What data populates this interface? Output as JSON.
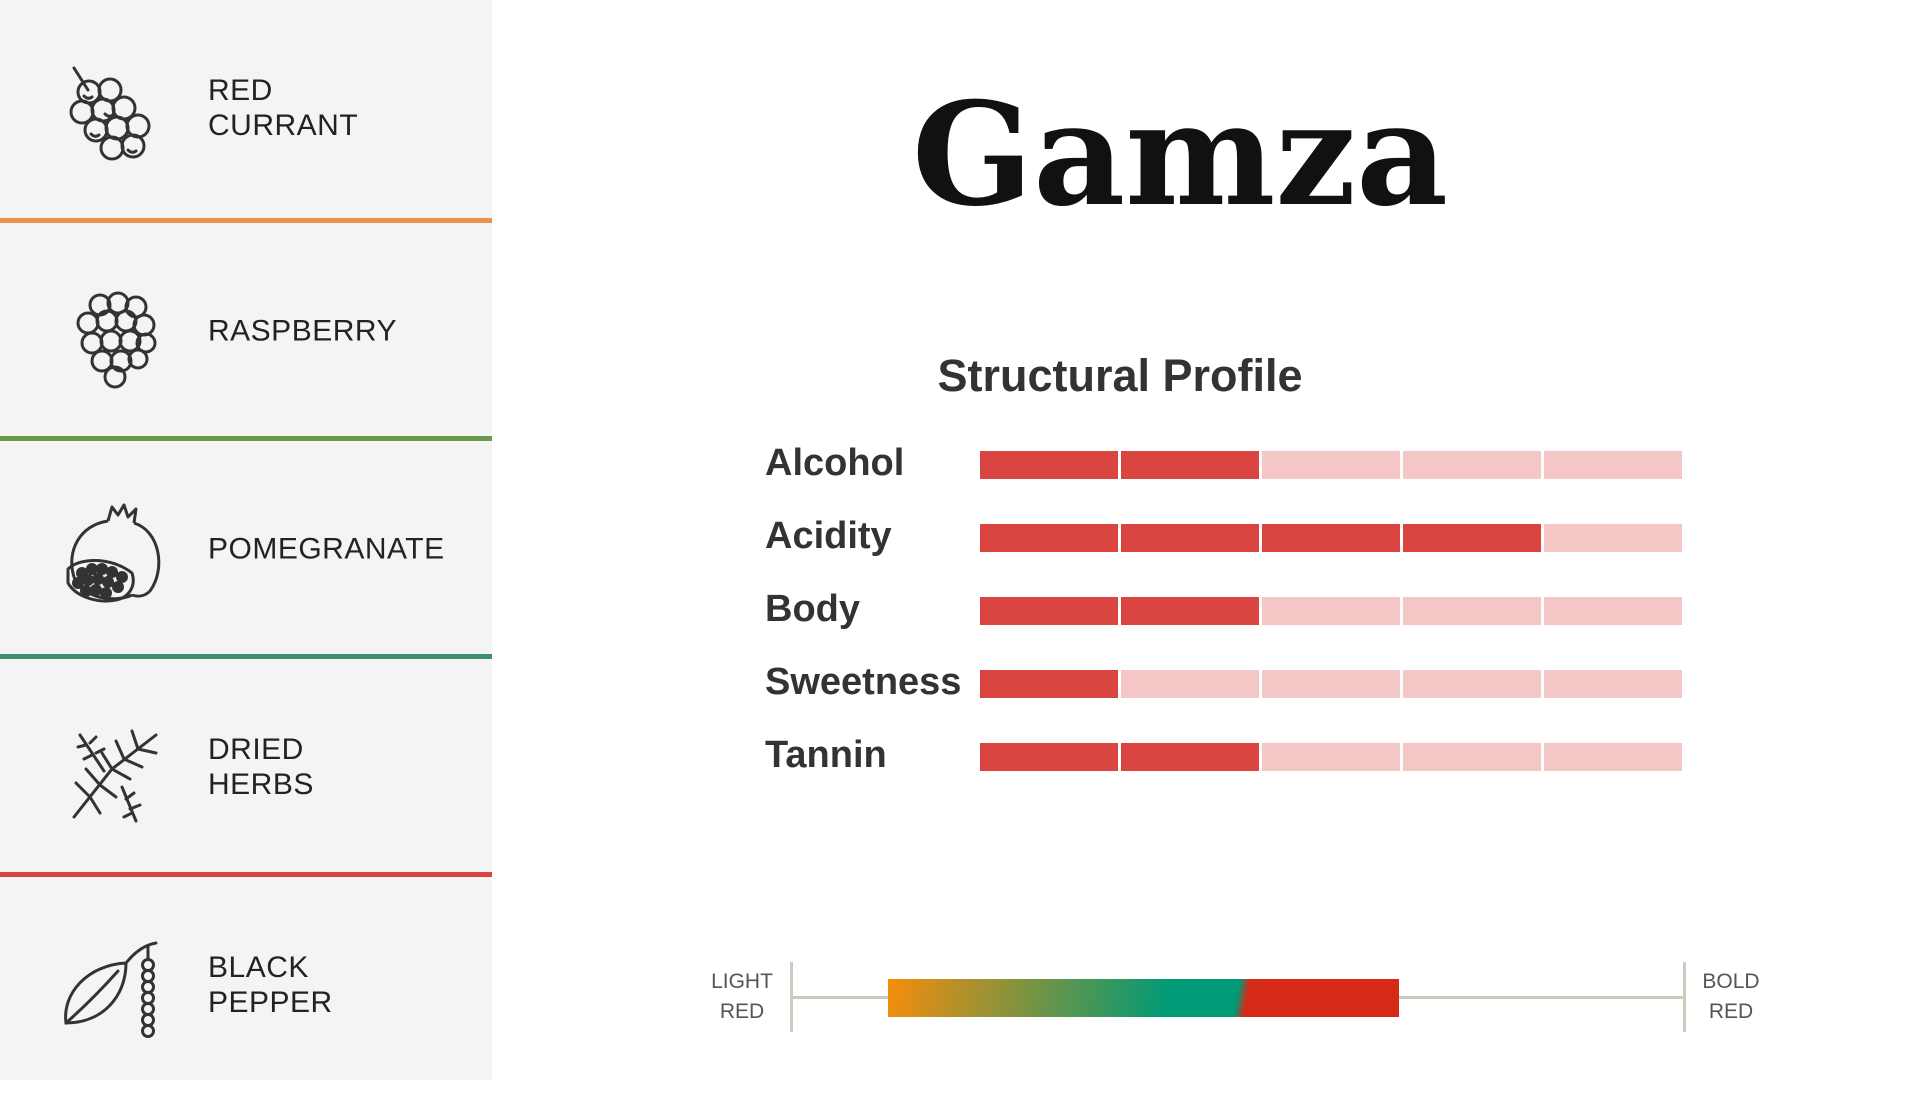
{
  "wine": {
    "name": "Gamza"
  },
  "tasting_notes": [
    {
      "label": "RED\nCURRANT",
      "icon": "red-currant-icon",
      "divider_color": "#eb914a"
    },
    {
      "label": "RASPBERRY",
      "icon": "raspberry-icon",
      "divider_color": "#6c9a48"
    },
    {
      "label": "POMEGRANATE",
      "icon": "pomegranate-icon",
      "divider_color": "#3f8f6a"
    },
    {
      "label": "DRIED\nHERBS",
      "icon": "dried-herbs-icon",
      "divider_color": "#d84541"
    },
    {
      "label": "BLACK\nPEPPER",
      "icon": "black-pepper-icon"
    }
  ],
  "structural_profile": {
    "title": "Structural Profile",
    "max_level": 5,
    "filled_color": "#da4542",
    "empty_color": "#f4c6c5",
    "rows": [
      {
        "label": "Alcohol",
        "level": 2
      },
      {
        "label": "Acidity",
        "level": 4
      },
      {
        "label": "Body",
        "level": 2
      },
      {
        "label": "Sweetness",
        "level": 1
      },
      {
        "label": "Tannin",
        "level": 2
      }
    ]
  },
  "style_scale": {
    "left_label": "LIGHT\nRED",
    "right_label": "BOLD\nRED",
    "range_start": 0.11,
    "range_end": 0.68,
    "colors": [
      "#f58d0c",
      "#009a77",
      "#d62a16"
    ],
    "line_color": "#cfcac0"
  }
}
